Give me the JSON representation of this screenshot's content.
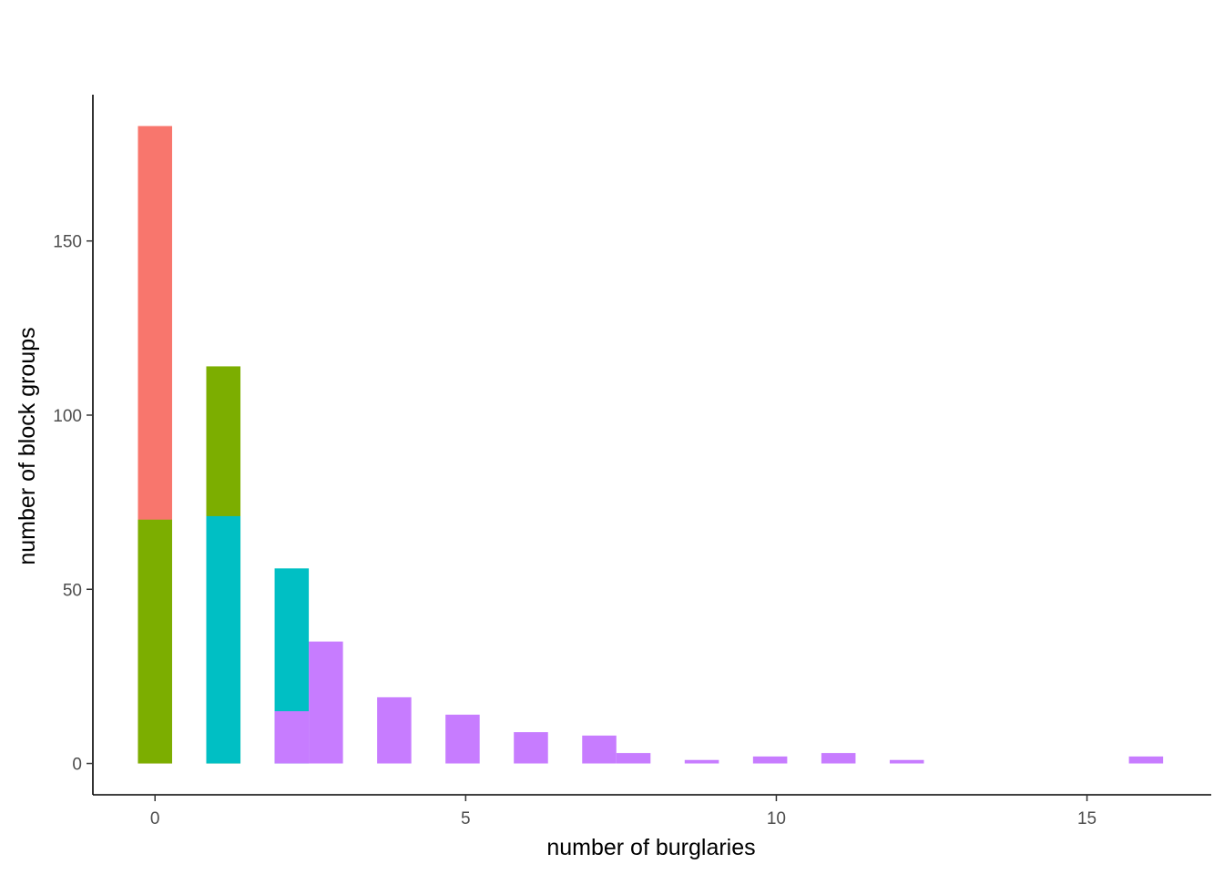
{
  "chart_data": {
    "type": "bar",
    "title": "",
    "xlabel": "number of burglaries",
    "ylabel": "number of block groups",
    "xlim": [
      -1,
      17
    ],
    "ylim": [
      -9,
      192
    ],
    "x_ticks": [
      0,
      5,
      10,
      15
    ],
    "y_ticks": [
      0,
      50,
      100,
      150
    ],
    "grid": false,
    "legend": "none",
    "bin_width": 0.55,
    "series": [
      {
        "color": "#F8766D",
        "bars": [
          {
            "x": 0,
            "count": 183
          }
        ]
      },
      {
        "color": "#7CAE00",
        "bars": [
          {
            "x": 0,
            "count": 70
          },
          {
            "x": 1.1,
            "count": 114
          }
        ]
      },
      {
        "color": "#00BFC4",
        "bars": [
          {
            "x": 1.1,
            "count": 71
          },
          {
            "x": 2.2,
            "count": 56
          }
        ]
      },
      {
        "color": "#C77CFF",
        "bars": [
          {
            "x": 2.2,
            "count": 15
          },
          {
            "x": 2.75,
            "count": 35
          },
          {
            "x": 3.85,
            "count": 19
          },
          {
            "x": 4.95,
            "count": 14
          },
          {
            "x": 6.05,
            "count": 9
          },
          {
            "x": 7.15,
            "count": 8
          },
          {
            "x": 7.7,
            "count": 3
          },
          {
            "x": 8.8,
            "count": 1
          },
          {
            "x": 9.9,
            "count": 2
          },
          {
            "x": 11.0,
            "count": 3
          },
          {
            "x": 12.1,
            "count": 1
          },
          {
            "x": 15.95,
            "count": 2
          }
        ]
      }
    ]
  }
}
